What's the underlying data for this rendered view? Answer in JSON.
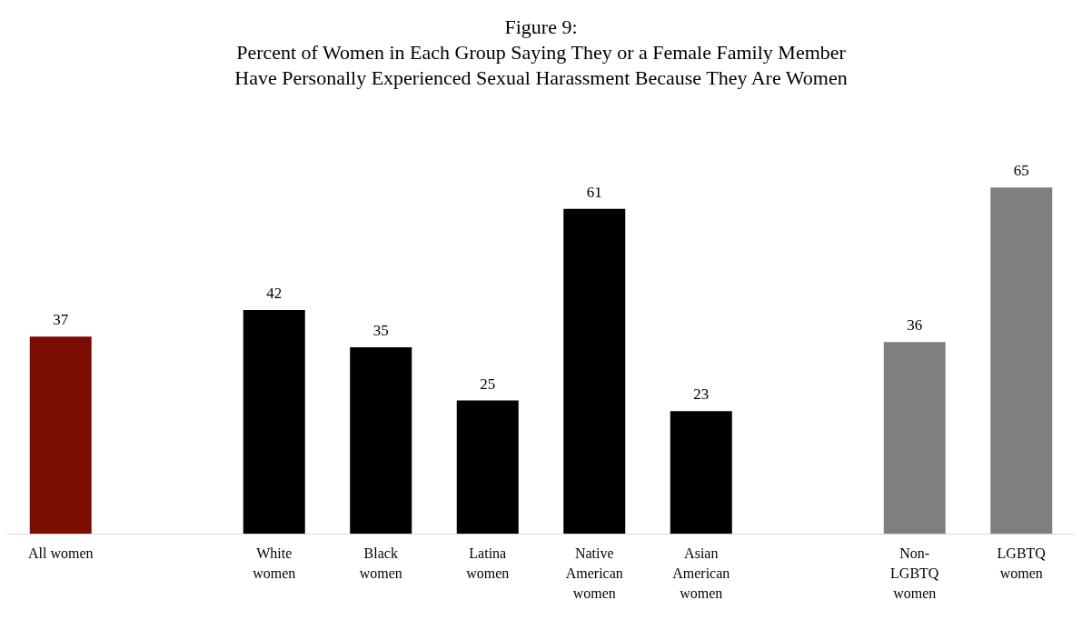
{
  "chart_data": {
    "type": "bar",
    "title": "Figure 9:\nPercent of Women in Each Group Saying They or a Female Family Member\nHave Personally Experienced Sexual Harassment Because They Are Women",
    "categories": [
      "All women",
      null,
      "White\nwomen",
      "Black\nwomen",
      "Latina\nwomen",
      "Native\nAmerican\nwomen",
      "Asian\nAmerican\nwomen",
      null,
      "Non-\nLGBTQ\nwomen",
      "LGBTQ\nwomen"
    ],
    "values": [
      37,
      null,
      42,
      35,
      25,
      61,
      23,
      null,
      36,
      65
    ],
    "colors": [
      "#7b0c02",
      null,
      "#000000",
      "#000000",
      "#000000",
      "#000000",
      "#000000",
      null,
      "#7f7f7f",
      "#7f7f7f"
    ],
    "data_labels": true
  }
}
